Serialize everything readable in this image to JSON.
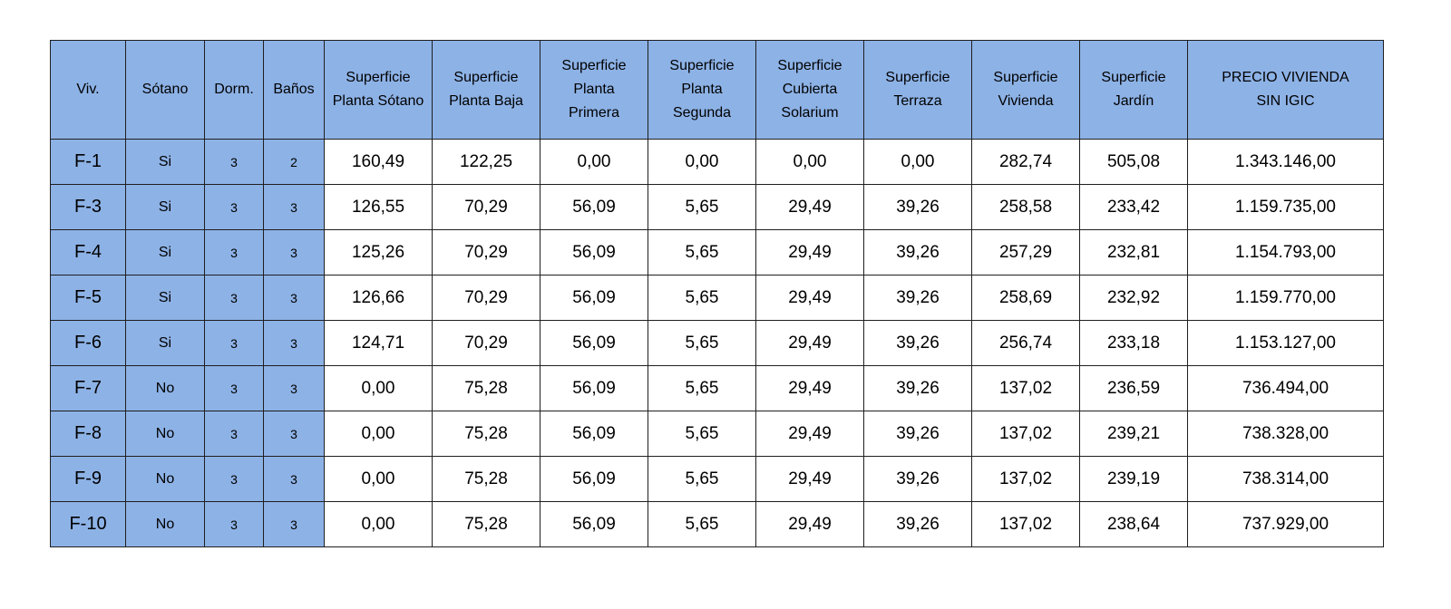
{
  "table": {
    "headers": [
      "Viv.",
      "Sótano",
      "Dorm.",
      "Baños",
      [
        "Superficie",
        "Planta Sótano"
      ],
      [
        "Superficie",
        "Planta Baja"
      ],
      [
        "Superficie",
        "Planta",
        "Primera"
      ],
      [
        "Superficie",
        "Planta",
        "Segunda"
      ],
      [
        "Superficie",
        "Cubierta",
        "Solarium"
      ],
      [
        "Superficie",
        "Terraza"
      ],
      [
        "Superficie",
        "Vivienda"
      ],
      [
        "Superficie",
        "Jardín"
      ],
      [
        "PRECIO VIVIENDA",
        "SIN IGIC"
      ]
    ],
    "rows": [
      [
        "F-1",
        "Si",
        "3",
        "2",
        "160,49",
        "122,25",
        "0,00",
        "0,00",
        "0,00",
        "0,00",
        "282,74",
        "505,08",
        "1.343.146,00"
      ],
      [
        "F-3",
        "Si",
        "3",
        "3",
        "126,55",
        "70,29",
        "56,09",
        "5,65",
        "29,49",
        "39,26",
        "258,58",
        "233,42",
        "1.159.735,00"
      ],
      [
        "F-4",
        "Si",
        "3",
        "3",
        "125,26",
        "70,29",
        "56,09",
        "5,65",
        "29,49",
        "39,26",
        "257,29",
        "232,81",
        "1.154.793,00"
      ],
      [
        "F-5",
        "Si",
        "3",
        "3",
        "126,66",
        "70,29",
        "56,09",
        "5,65",
        "29,49",
        "39,26",
        "258,69",
        "232,92",
        "1.159.770,00"
      ],
      [
        "F-6",
        "Si",
        "3",
        "3",
        "124,71",
        "70,29",
        "56,09",
        "5,65",
        "29,49",
        "39,26",
        "256,74",
        "233,18",
        "1.153.127,00"
      ],
      [
        "F-7",
        "No",
        "3",
        "3",
        "0,00",
        "75,28",
        "56,09",
        "5,65",
        "29,49",
        "39,26",
        "137,02",
        "236,59",
        "736.494,00"
      ],
      [
        "F-8",
        "No",
        "3",
        "3",
        "0,00",
        "75,28",
        "56,09",
        "5,65",
        "29,49",
        "39,26",
        "137,02",
        "239,21",
        "738.328,00"
      ],
      [
        "F-9",
        "No",
        "3",
        "3",
        "0,00",
        "75,28",
        "56,09",
        "5,65",
        "29,49",
        "39,26",
        "137,02",
        "239,19",
        "738.314,00"
      ],
      [
        "F-10",
        "No",
        "3",
        "3",
        "0,00",
        "75,28",
        "56,09",
        "5,65",
        "29,49",
        "39,26",
        "137,02",
        "238,64",
        "737.929,00"
      ]
    ]
  },
  "colors": {
    "header_fill": "#8db2e6",
    "border": "#1f1f1f",
    "cell_fill": "#ffffff"
  }
}
